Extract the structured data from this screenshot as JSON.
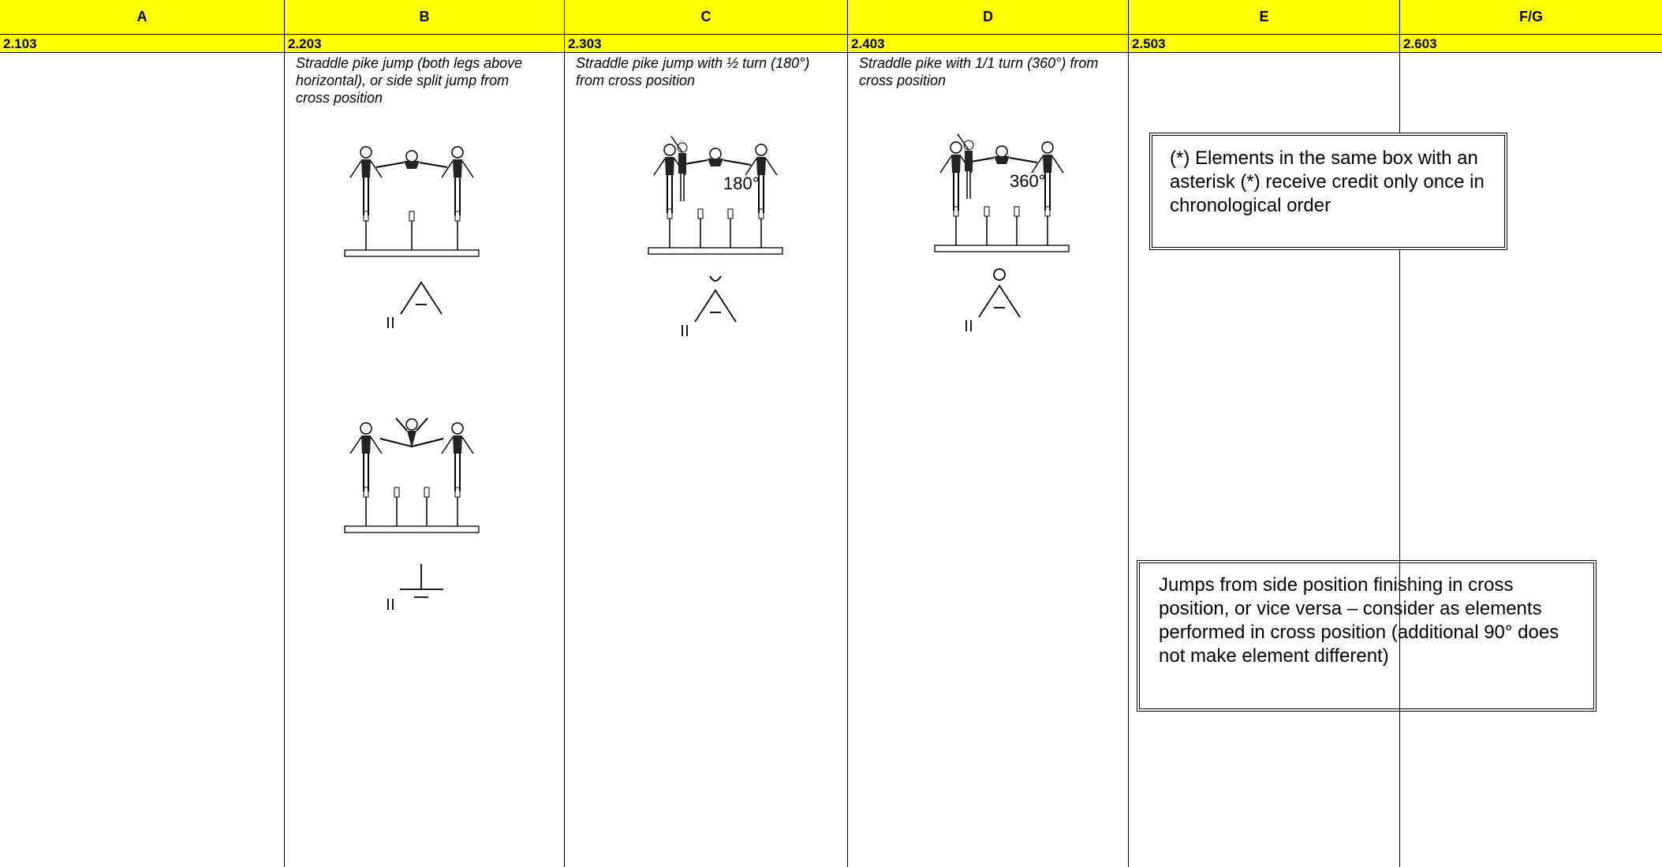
{
  "table": {
    "columns": [
      "A",
      "B",
      "C",
      "D",
      "E",
      "F/G"
    ],
    "codes": [
      "2.103",
      "2.203",
      "2.303",
      "2.403",
      "2.503",
      "2.603"
    ],
    "descriptions": [
      "",
      "Straddle pike jump (both legs above horizontal), or side split jump from cross position",
      "Straddle pike jump with ½ turn (180°) from cross position",
      "Straddle pike with 1/1 turn (360°) from cross position",
      "",
      ""
    ],
    "figure_labels": [
      "180°",
      "360°"
    ]
  },
  "notes": [
    "(*) Elements in the same box with an asterisk (*) receive credit only once in chronological order",
    "Jumps from side position finishing in cross position, or vice versa – consider as elements performed in cross position (additional 90° does not make element different)"
  ]
}
